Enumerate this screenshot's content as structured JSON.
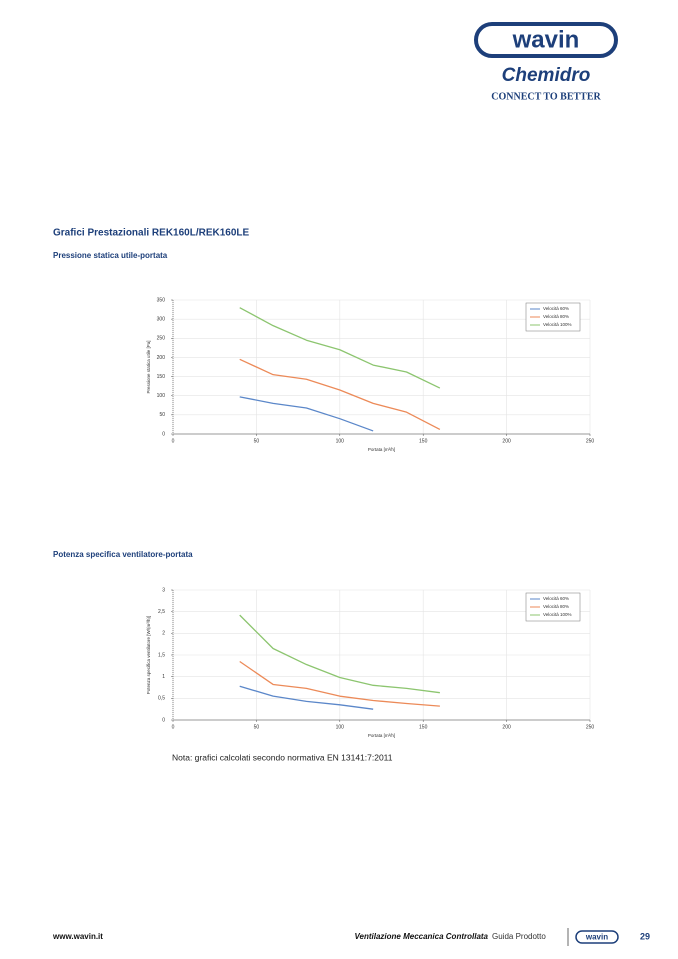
{
  "header": {
    "logo": "wavin",
    "brand": "Chemidro",
    "tagline": "CONNECT TO BETTER"
  },
  "heading": "Grafici Prestazionali REK160L/REK160LE",
  "chart_data": [
    {
      "type": "line",
      "title": "Pressione statica utile-portata",
      "x_label": "Portata [m³/h]",
      "y_label": "Pressione statica utile [Pa]",
      "x": [
        40,
        60,
        80,
        100,
        120,
        140,
        160
      ],
      "series": [
        {
          "name": "Velocità 60%",
          "color": "#5b87c9",
          "values": [
            97,
            80,
            68,
            40,
            8,
            null,
            null
          ]
        },
        {
          "name": "Velocità 80%",
          "color": "#ec8a58",
          "values": [
            195,
            155,
            143,
            115,
            80,
            57,
            12
          ]
        },
        {
          "name": "Velocità 100%",
          "color": "#8cc56f",
          "values": [
            330,
            283,
            245,
            220,
            180,
            162,
            120
          ]
        }
      ],
      "xlim": [
        0,
        250
      ],
      "xticks": [
        0,
        50,
        100,
        150,
        200,
        250
      ],
      "ylim": [
        0,
        350
      ],
      "yticks": [
        0,
        50,
        100,
        150,
        200,
        250,
        300,
        350
      ],
      "grid": true,
      "legend": "upper right"
    },
    {
      "type": "line",
      "title": "Potenza specifica ventilatore-portata",
      "x_label": "Portata [m³/h]",
      "y_label": "Potenza specifica ventilatore [W/(m³/h)]",
      "x": [
        40,
        60,
        80,
        100,
        120,
        140,
        160
      ],
      "series": [
        {
          "name": "Velocità 60%",
          "color": "#5b87c9",
          "values": [
            0.78,
            0.55,
            0.43,
            0.35,
            0.25,
            null,
            null
          ]
        },
        {
          "name": "Velocità 80%",
          "color": "#ec8a58",
          "values": [
            1.35,
            0.82,
            0.73,
            0.55,
            0.45,
            0.38,
            0.32
          ]
        },
        {
          "name": "Velocità 100%",
          "color": "#8cc56f",
          "values": [
            2.42,
            1.65,
            1.28,
            0.98,
            0.8,
            0.73,
            0.63
          ]
        }
      ],
      "xlim": [
        0,
        250
      ],
      "xticks": [
        0,
        50,
        100,
        150,
        200,
        250
      ],
      "ylim": [
        0,
        3
      ],
      "yticks": [
        0,
        {
          "value": 0.5,
          "label": "0,5"
        },
        1,
        {
          "value": 1.5,
          "label": "1,5"
        },
        2,
        {
          "value": 2.5,
          "label": "2,5"
        },
        3
      ],
      "grid": true,
      "legend": "upper right"
    }
  ],
  "note": "Nota: grafici calcolati secondo normativa EN 13141:7:2011",
  "footer": {
    "url": "www.wavin.it",
    "title": "Ventilazione Meccanica Controllata",
    "subtitle": "Guida Prodotto",
    "logo": "wavin",
    "page": "29"
  }
}
